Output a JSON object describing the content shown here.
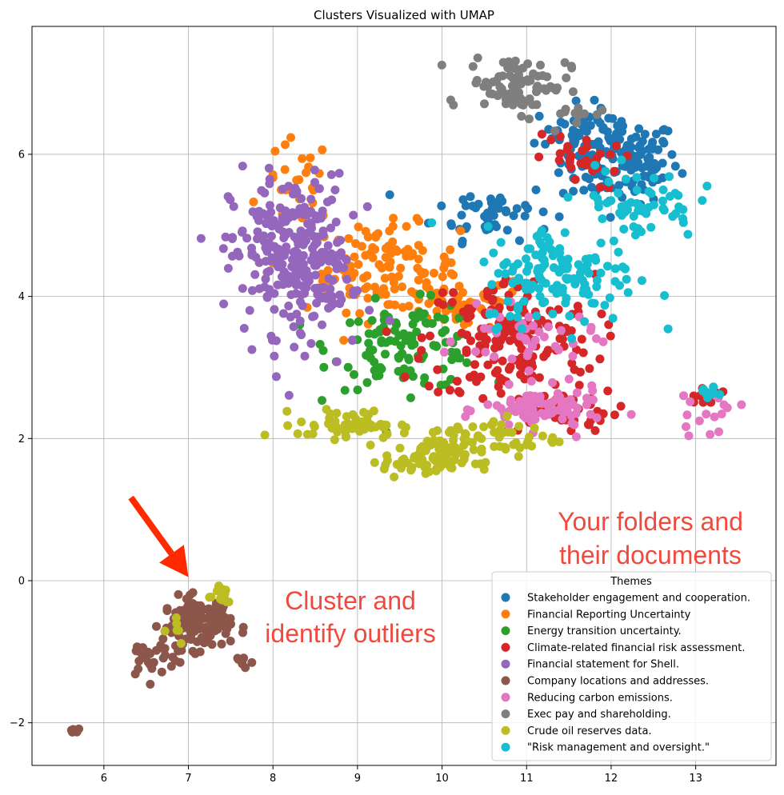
{
  "chart_data": {
    "type": "scatter",
    "title": "Clusters Visualized with UMAP",
    "xlabel": "",
    "ylabel": "",
    "xlim": [
      5.15,
      13.95
    ],
    "ylim": [
      -2.6,
      7.8
    ],
    "x_ticks": [
      6,
      7,
      8,
      9,
      10,
      11,
      12,
      13
    ],
    "y_ticks": [
      -2,
      0,
      2,
      4,
      6
    ],
    "x_tick_labels": [
      "6",
      "7",
      "8",
      "9",
      "10",
      "11",
      "12",
      "13"
    ],
    "y_tick_labels": [
      "−2",
      "0",
      "2",
      "4",
      "6"
    ],
    "grid": true,
    "legend": {
      "title": "Themes",
      "placement": "lower-right"
    },
    "series": [
      {
        "name": "Stakeholder engagement and cooperation.",
        "color": "#1f77b4",
        "clusters": [
          {
            "cx": 12.1,
            "cy": 5.9,
            "sx": 0.35,
            "sy": 0.3,
            "n": 140
          },
          {
            "cx": 10.6,
            "cy": 5.2,
            "sx": 0.35,
            "sy": 0.2,
            "n": 50
          },
          {
            "cx": 11.6,
            "cy": 6.3,
            "sx": 0.25,
            "sy": 0.2,
            "n": 40
          }
        ]
      },
      {
        "name": "Financial Reporting Uncertainty",
        "color": "#ff7f0e",
        "clusters": [
          {
            "cx": 9.3,
            "cy": 4.4,
            "sx": 0.45,
            "sy": 0.3,
            "n": 110
          },
          {
            "cx": 10.2,
            "cy": 3.9,
            "sx": 0.4,
            "sy": 0.2,
            "n": 60
          },
          {
            "cx": 8.3,
            "cy": 5.6,
            "sx": 0.2,
            "sy": 0.3,
            "n": 25
          }
        ]
      },
      {
        "name": "Energy transition uncertainty.",
        "color": "#2ca02c",
        "clusters": [
          {
            "cx": 9.6,
            "cy": 3.3,
            "sx": 0.45,
            "sy": 0.3,
            "n": 120
          }
        ]
      },
      {
        "name": "Climate-related financial risk assessment.",
        "color": "#d62728",
        "clusters": [
          {
            "cx": 10.8,
            "cy": 3.4,
            "sx": 0.5,
            "sy": 0.45,
            "n": 170
          },
          {
            "cx": 11.4,
            "cy": 2.4,
            "sx": 0.35,
            "sy": 0.15,
            "n": 50
          },
          {
            "cx": 11.6,
            "cy": 5.9,
            "sx": 0.25,
            "sy": 0.2,
            "n": 30
          },
          {
            "cx": 13.1,
            "cy": 2.6,
            "sx": 0.1,
            "sy": 0.06,
            "n": 12
          }
        ]
      },
      {
        "name": "Financial statement for Shell.",
        "color": "#9467bd",
        "clusters": [
          {
            "cx": 8.2,
            "cy": 4.6,
            "sx": 0.35,
            "sy": 0.55,
            "n": 220
          },
          {
            "cx": 8.6,
            "cy": 4.3,
            "sx": 0.3,
            "sy": 0.6,
            "n": 60
          }
        ]
      },
      {
        "name": "Company locations and addresses.",
        "color": "#8c564b",
        "clusters": [
          {
            "cx": 7.1,
            "cy": -0.6,
            "sx": 0.2,
            "sy": 0.18,
            "n": 130
          },
          {
            "cx": 6.55,
            "cy": -1.1,
            "sx": 0.15,
            "sy": 0.15,
            "n": 25
          },
          {
            "cx": 5.65,
            "cy": -2.1,
            "sx": 0.04,
            "sy": 0.04,
            "n": 6
          },
          {
            "cx": 7.65,
            "cy": -1.1,
            "sx": 0.06,
            "sy": 0.05,
            "n": 8
          }
        ]
      },
      {
        "name": "Reducing carbon emissions.",
        "color": "#e377c2",
        "clusters": [
          {
            "cx": 11.2,
            "cy": 2.4,
            "sx": 0.35,
            "sy": 0.15,
            "n": 90
          },
          {
            "cx": 11.0,
            "cy": 3.4,
            "sx": 0.4,
            "sy": 0.2,
            "n": 40
          },
          {
            "cx": 13.1,
            "cy": 2.35,
            "sx": 0.2,
            "sy": 0.15,
            "n": 15
          }
        ]
      },
      {
        "name": "Exec pay and shareholding.",
        "color": "#7f7f7f",
        "clusters": [
          {
            "cx": 10.9,
            "cy": 7.0,
            "sx": 0.3,
            "sy": 0.2,
            "n": 90
          },
          {
            "cx": 11.5,
            "cy": 6.5,
            "sx": 0.2,
            "sy": 0.1,
            "n": 10
          }
        ]
      },
      {
        "name": "Crude oil reserves data.",
        "color": "#bcbd22",
        "clusters": [
          {
            "cx": 9.8,
            "cy": 1.7,
            "sx": 0.25,
            "sy": 0.13,
            "n": 80
          },
          {
            "cx": 8.9,
            "cy": 2.2,
            "sx": 0.3,
            "sy": 0.1,
            "n": 60
          },
          {
            "cx": 10.6,
            "cy": 2.0,
            "sx": 0.4,
            "sy": 0.15,
            "n": 60
          },
          {
            "cx": 7.35,
            "cy": -0.2,
            "sx": 0.1,
            "sy": 0.1,
            "n": 12
          },
          {
            "cx": 6.8,
            "cy": -0.6,
            "sx": 0.1,
            "sy": 0.15,
            "n": 6
          }
        ]
      },
      {
        "name": "\"Risk management and oversight.\"",
        "color": "#17becf",
        "clusters": [
          {
            "cx": 11.4,
            "cy": 4.3,
            "sx": 0.45,
            "sy": 0.35,
            "n": 140
          },
          {
            "cx": 12.3,
            "cy": 5.3,
            "sx": 0.35,
            "sy": 0.25,
            "n": 60
          },
          {
            "cx": 13.15,
            "cy": 2.65,
            "sx": 0.1,
            "sy": 0.05,
            "n": 10
          }
        ]
      }
    ],
    "annotations": [
      {
        "lines": [
          "Your folders and",
          "their documents"
        ],
        "color": "#f04a3e"
      },
      {
        "lines": [
          "Cluster and",
          "identify outliers"
        ],
        "color": "#f04a3e"
      }
    ],
    "arrow": {
      "from": [
        6.32,
        1.17
      ],
      "to": [
        7.0,
        0.05
      ],
      "color": "#ff2a00"
    }
  }
}
